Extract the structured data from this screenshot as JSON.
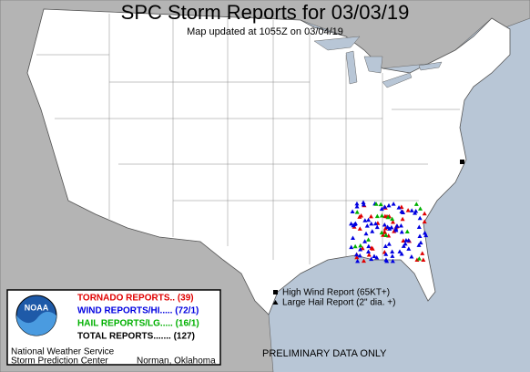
{
  "header": {
    "title": "SPC Storm Reports for 03/03/19",
    "subtitle": "Map updated at 1055Z on 03/04/19"
  },
  "legend": {
    "tornado": "TORNADO REPORTS.. (39)",
    "wind": "WIND REPORTS/HI..... (72/1)",
    "hail": "HAIL REPORTS/LG..... (16/1)",
    "total": "TOTAL REPORTS....... (127)",
    "high_wind": "High Wind Report (65KT+)",
    "large_hail": "Large Hail Report (2\" dia. +)"
  },
  "logo": "NOAA",
  "footer": {
    "office": "National Weather Service",
    "center": "Storm Prediction Center",
    "location": "Norman, Oklahoma",
    "note": "PRELIMINARY DATA ONLY"
  }
}
